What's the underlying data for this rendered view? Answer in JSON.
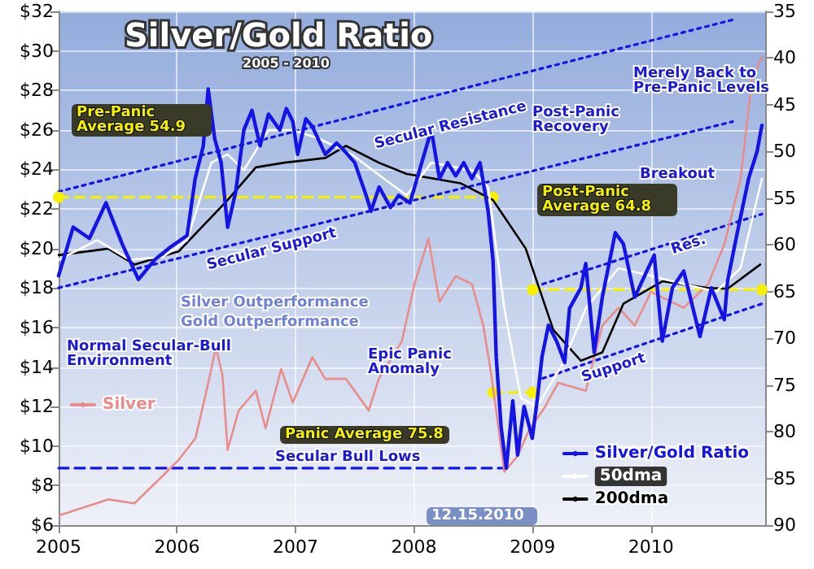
{
  "chart_data": {
    "type": "line",
    "title": "Silver/Gold Ratio",
    "subtitle": "2005 - 2010",
    "xlim": [
      "2005-01-01",
      "2010-12-19"
    ],
    "xticks": [
      "2005",
      "2006",
      "2007",
      "2008",
      "2009",
      "2010"
    ],
    "ylim": [
      6,
      32
    ],
    "yticks": [
      {
        "value": 6,
        "label": "$6"
      },
      {
        "value": 8,
        "label": "$8"
      },
      {
        "value": 10,
        "label": "$10"
      },
      {
        "value": 12,
        "label": "$12"
      },
      {
        "value": 14,
        "label": "$14"
      },
      {
        "value": 16,
        "label": "$16"
      },
      {
        "value": 18,
        "label": "$18"
      },
      {
        "value": 20,
        "label": "$20"
      },
      {
        "value": 22,
        "label": "$22"
      },
      {
        "value": 24,
        "label": "$24"
      },
      {
        "value": 26,
        "label": "$26"
      },
      {
        "value": 28,
        "label": "$28"
      },
      {
        "value": 30,
        "label": "$30"
      },
      {
        "value": 32,
        "label": "$32"
      }
    ],
    "y2lim": [
      90,
      35
    ],
    "y2ticks": [
      35,
      40,
      45,
      50,
      55,
      60,
      65,
      70,
      75,
      80,
      85,
      90
    ],
    "grid": true,
    "legend": "bottom right",
    "series": [
      {
        "name": "Silver",
        "color": "#e88c8c",
        "x": [
          "2005-01-05",
          "2005-06-03",
          "2005-08-23",
          "2005-11-18",
          "2006-01-06",
          "2006-02-27",
          "2006-04-06",
          "2006-05-01",
          "2006-05-21",
          "2006-06-06",
          "2006-07-10",
          "2006-09-01",
          "2006-10-01",
          "2006-11-18",
          "2006-12-24",
          "2007-02-22",
          "2007-04-03",
          "2007-06-06",
          "2007-08-15",
          "2007-09-15",
          "2007-11-25",
          "2008-01-03",
          "2008-02-15",
          "2008-03-20",
          "2008-05-09",
          "2008-06-28",
          "2008-08-02",
          "2008-08-27",
          "2008-10-06",
          "2008-11-16",
          "2008-12-21",
          "2009-02-09",
          "2009-03-21",
          "2009-06-14",
          "2009-08-04",
          "2009-09-23",
          "2009-11-12",
          "2010-01-01",
          "2010-04-12",
          "2010-06-26",
          "2010-08-15",
          "2010-10-04",
          "2010-11-08",
          "2010-12-09"
        ],
        "values": [
          6.5,
          7.3,
          7.1,
          8.5,
          9.3,
          10.4,
          13.1,
          15.0,
          13.6,
          9.8,
          11.8,
          12.8,
          10.9,
          13.9,
          12.2,
          14.5,
          13.4,
          13.4,
          11.8,
          13.4,
          15.3,
          18.2,
          20.5,
          17.3,
          18.6,
          18.2,
          16.1,
          13.6,
          8.7,
          9.5,
          10.8,
          12.0,
          13.2,
          12.8,
          16.1,
          17.0,
          16.1,
          17.8,
          17.0,
          18.2,
          20.2,
          23.5,
          28.5,
          29.7
        ]
      },
      {
        "name": "200dma",
        "color": "#000000",
        "axis": "y2",
        "x": [
          "2005-01-01",
          "2005-06-03",
          "2005-08-23",
          "2006-01-06",
          "2006-06-06",
          "2006-09-01",
          "2006-11-28",
          "2007-04-03",
          "2007-06-06",
          "2007-09-15",
          "2007-12-10",
          "2008-05-24",
          "2008-09-01",
          "2008-12-11",
          "2009-03-06",
          "2009-05-30",
          "2009-08-04",
          "2009-10-08",
          "2010-02-05",
          "2010-06-21",
          "2010-08-25",
          "2010-12-04"
        ],
        "values": [
          61.1,
          60.4,
          62.1,
          60.7,
          55.2,
          51.7,
          51.2,
          50.7,
          49.4,
          51.2,
          52.4,
          53.4,
          55.2,
          60.4,
          69.1,
          72.4,
          71.5,
          66.3,
          63.9,
          64.6,
          64.7,
          62.1
        ]
      },
      {
        "name": "50dma",
        "color": "#ffffff",
        "axis": "y2",
        "x": [
          "2005-01-01",
          "2005-04-30",
          "2005-08-08",
          "2005-11-18",
          "2006-02-01",
          "2006-04-17",
          "2006-06-06",
          "2006-07-26",
          "2006-10-10",
          "2006-12-24",
          "2007-03-13",
          "2007-06-23",
          "2007-10-01",
          "2007-12-10",
          "2008-02-24",
          "2008-06-28",
          "2008-08-17",
          "2008-10-06",
          "2008-11-26",
          "2009-01-15",
          "2009-04-01",
          "2009-06-14",
          "2009-09-23",
          "2010-01-01",
          "2010-04-12",
          "2010-07-21",
          "2010-10-04",
          "2010-12-09"
        ],
        "values": [
          61.6,
          59.5,
          61.6,
          61.3,
          59.5,
          51.2,
          50.3,
          52.0,
          47.7,
          47.7,
          48.6,
          50.3,
          52.9,
          54.7,
          51.2,
          52.0,
          53.8,
          66.8,
          76.4,
          77.3,
          72.9,
          66.8,
          62.5,
          63.3,
          64.2,
          65.0,
          62.5,
          52.9
        ]
      },
      {
        "name": "Silver/Gold Ratio",
        "color": "#1414e6",
        "axis": "y2",
        "x": [
          "2005-01-01",
          "2005-02-15",
          "2005-04-06",
          "2005-05-27",
          "2005-07-16",
          "2005-09-04",
          "2005-10-24",
          "2005-12-13",
          "2006-02-01",
          "2006-02-26",
          "2006-03-23",
          "2006-04-07",
          "2006-04-27",
          "2006-05-17",
          "2006-06-06",
          "2006-07-01",
          "2006-07-26",
          "2006-08-20",
          "2006-09-14",
          "2006-10-10",
          "2006-11-14",
          "2006-12-04",
          "2006-12-24",
          "2007-01-08",
          "2007-02-02",
          "2007-02-22",
          "2007-04-03",
          "2007-05-08",
          "2007-06-03",
          "2007-07-03",
          "2007-08-07",
          "2007-08-22",
          "2007-09-16",
          "2007-10-21",
          "2007-11-15",
          "2007-12-20",
          "2008-02-24",
          "2008-03-20",
          "2008-04-14",
          "2008-05-09",
          "2008-06-03",
          "2008-06-28",
          "2008-07-23",
          "2008-08-17",
          "2008-09-01",
          "2008-09-11",
          "2008-09-26",
          "2008-10-12",
          "2008-11-01",
          "2008-11-16",
          "2008-12-06",
          "2008-12-31",
          "2009-01-15",
          "2009-01-30",
          "2009-02-19",
          "2009-03-16",
          "2009-04-10",
          "2009-04-25",
          "2009-05-30",
          "2009-06-14",
          "2009-07-10",
          "2009-08-04",
          "2009-09-13",
          "2009-10-08",
          "2009-11-12",
          "2010-01-11",
          "2010-02-05",
          "2010-03-08",
          "2010-04-12",
          "2010-06-01",
          "2010-07-06",
          "2010-08-15",
          "2010-08-25",
          "2010-09-24",
          "2010-10-29",
          "2010-11-24",
          "2010-12-09"
        ],
        "values": [
          63.3,
          58.1,
          59.3,
          55.5,
          59.9,
          63.7,
          61.6,
          60.2,
          59.0,
          52.9,
          49.4,
          43.3,
          48.6,
          51.2,
          58.1,
          54.3,
          47.7,
          45.6,
          49.4,
          46.0,
          47.7,
          45.4,
          46.8,
          50.3,
          46.5,
          47.3,
          50.3,
          49.1,
          50.0,
          51.2,
          54.7,
          56.4,
          53.8,
          56.0,
          54.7,
          55.5,
          47.7,
          52.9,
          51.2,
          52.6,
          51.2,
          52.9,
          51.2,
          56.4,
          61.6,
          72.0,
          79.5,
          83.9,
          76.7,
          82.5,
          77.3,
          80.7,
          76.7,
          72.0,
          68.6,
          70.3,
          72.6,
          66.8,
          64.6,
          62.0,
          71.5,
          65.6,
          58.7,
          59.9,
          65.6,
          61.1,
          70.3,
          64.6,
          62.8,
          69.8,
          64.6,
          68.0,
          63.9,
          58.7,
          52.9,
          50.0,
          47.2
        ]
      },
      {
        "color": "#f5f000",
        "axis": "y2",
        "line_style": "dashed",
        "marker": "circle",
        "x": [
          "2005-01-01",
          "2008-09-01"
        ],
        "values": [
          54.9,
          54.9
        ]
      },
      {
        "color": "#f5f000",
        "axis": "y2",
        "line_style": "dashed",
        "marker": "circle",
        "x": [
          "2008-09-01",
          "2009-01-01"
        ],
        "values": [
          75.8,
          75.8
        ]
      },
      {
        "color": "#f5f000",
        "axis": "y2",
        "line_style": "dashed",
        "marker": "circle",
        "x": [
          "2009-01-01",
          "2010-12-09"
        ],
        "values": [
          64.8,
          64.8
        ]
      },
      {
        "color": "#1414e6",
        "axis": "y2",
        "line_style": "dashed",
        "x": [
          "2005-01-01",
          "2008-10-12"
        ],
        "values": [
          83.9,
          83.9
        ]
      },
      {
        "color": "#1414e6",
        "axis": "y2",
        "line_style": "dotted",
        "x": [
          "2005-01-01",
          "2010-09-10"
        ],
        "values": [
          54.3,
          35.9
        ]
      },
      {
        "color": "#1414e6",
        "axis": "y2",
        "line_style": "dotted",
        "x": [
          "2005-01-01",
          "2010-09-10"
        ],
        "values": [
          64.6,
          46.8
        ]
      },
      {
        "color": "#1414e6",
        "axis": "y2",
        "line_style": "dotted",
        "x": [
          "2009-02-01",
          "2010-12-09"
        ],
        "values": [
          64.2,
          56.7
        ]
      },
      {
        "color": "#1414e6",
        "axis": "y2",
        "line_style": "dotted",
        "x": [
          "2009-02-01",
          "2010-12-09"
        ],
        "values": [
          74.3,
          66.3
        ]
      }
    ],
    "annotations": [
      "Pre-Panic Average 54.9",
      "Secular Resistance",
      "Secular Support",
      "Post-Panic Recovery",
      "Post-Panic Average 64.8",
      "Merely Back to Pre-Panic Levels",
      "Breakout",
      "Res.",
      "Silver Outperformance",
      "Gold Outperformance",
      "Normal Secular-Bull Environment",
      "Epic Panic Anomaly",
      "Panic Average 75.8",
      "Secular Bull Lows",
      "Support",
      "12.15.2010"
    ]
  }
}
